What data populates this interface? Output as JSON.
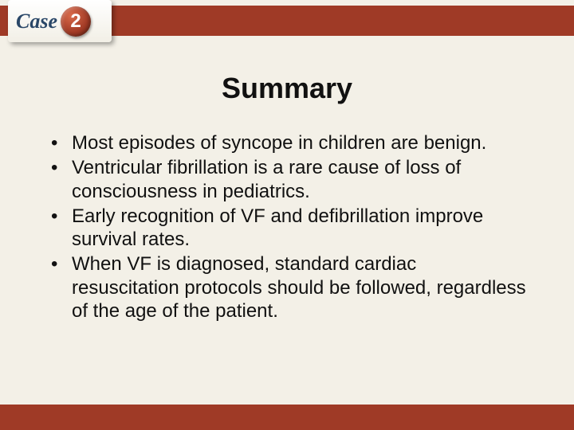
{
  "badge": {
    "label": "Case",
    "number": "2"
  },
  "title": "Summary",
  "bullets": [
    "Most episodes of syncope in children are benign.",
    "Ventricular fibrillation is a rare cause of loss of consciousness in pediatrics.",
    "Early recognition of VF and defibrillation improve survival rates.",
    "When VF is diagnosed, standard cardiac resuscitation protocols should be followed, regardless of the age of the patient."
  ],
  "colors": {
    "header_bar": "#9f3a26",
    "footer_bar": "#9f3a26",
    "background": "#f3f0e7",
    "badge_text": "#2a4768",
    "text": "#111111"
  },
  "typography": {
    "title_fontsize": 36,
    "body_fontsize": 24,
    "badge_label_fontsize": 26,
    "badge_number_fontsize": 24
  }
}
